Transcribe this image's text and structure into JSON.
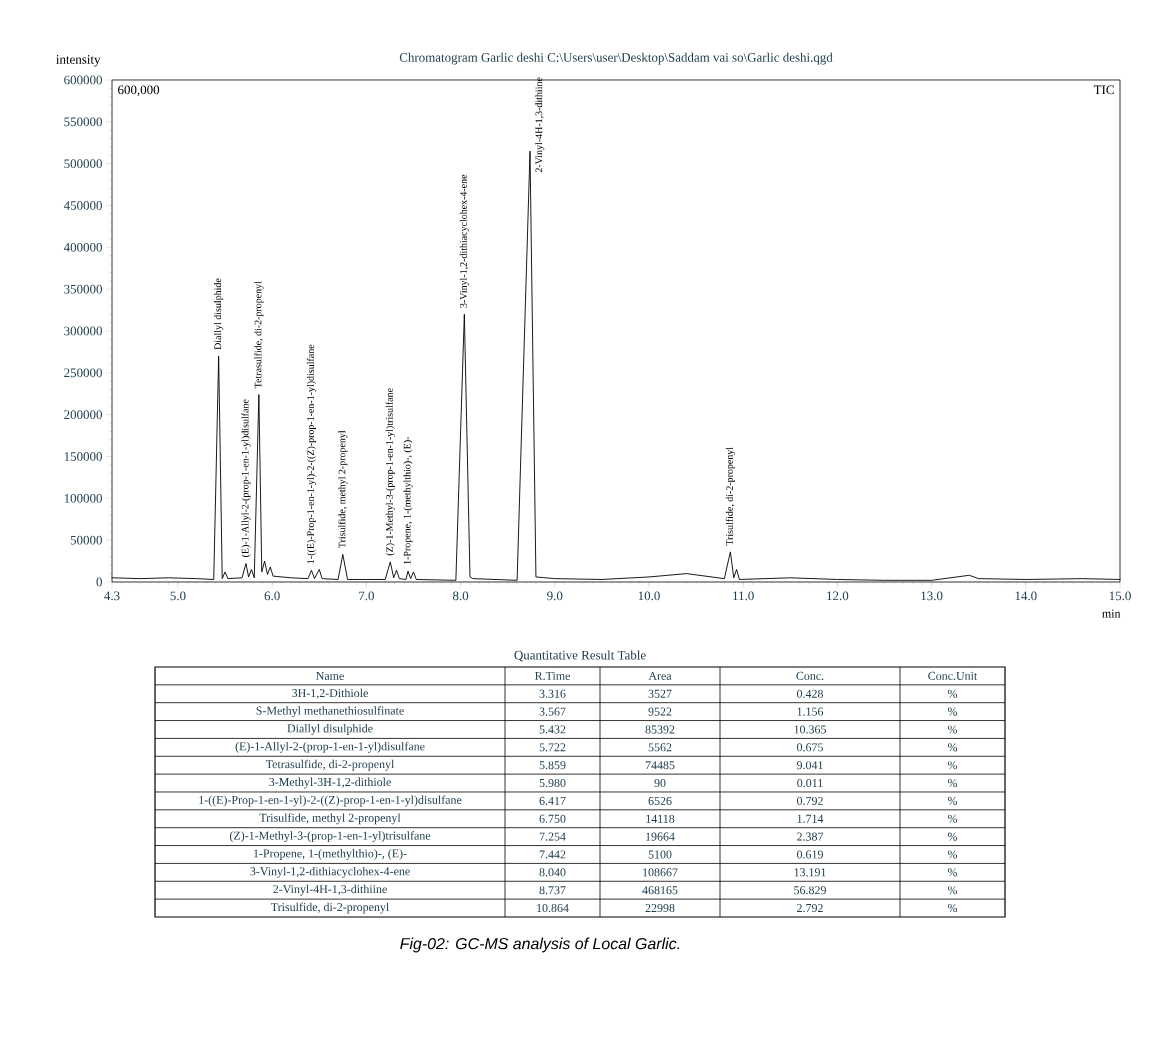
{
  "chart_data": [
    {
      "type": "line",
      "title": "Chromatogram Garlic deshi C:\\Users\\user\\Desktop\\Saddam vai so\\Garlic deshi.qgd",
      "xlabel": "min",
      "ylabel": "intensity",
      "x": [
        4.3,
        4.6,
        4.9,
        5.2,
        5.38,
        5.432,
        5.47,
        5.5,
        5.53,
        5.68,
        5.722,
        5.75,
        5.78,
        5.81,
        5.859,
        5.89,
        5.92,
        5.95,
        5.98,
        6.01,
        6.2,
        6.38,
        6.417,
        6.45,
        6.5,
        6.53,
        6.7,
        6.75,
        6.8,
        7.2,
        7.254,
        7.29,
        7.32,
        7.35,
        7.42,
        7.442,
        7.47,
        7.5,
        7.53,
        7.95,
        8.04,
        8.1,
        8.13,
        8.6,
        8.737,
        8.8,
        9.0,
        9.5,
        10.0,
        10.4,
        10.8,
        10.864,
        10.9,
        10.93,
        10.96,
        11.5,
        12.0,
        12.5,
        13.0,
        13.4,
        13.5,
        14.0,
        14.6,
        15.0
      ],
      "series": [
        {
          "color": "#000000",
          "values": [
            5000,
            4000,
            5000,
            4000,
            3000,
            270000,
            4000,
            12000,
            4000,
            5000,
            22000,
            6000,
            15000,
            5000,
            224000,
            12000,
            25000,
            9000,
            18000,
            7000,
            5000,
            4000,
            14000,
            4000,
            15000,
            4000,
            3000,
            33000,
            3000,
            3000,
            24000,
            5000,
            14000,
            4000,
            3000,
            13000,
            4000,
            12000,
            3000,
            2000,
            320000,
            6000,
            4000,
            2000,
            515000,
            6000,
            4000,
            3000,
            6000,
            10000,
            4000,
            36000,
            5000,
            15000,
            3000,
            5000,
            3000,
            2000,
            2000,
            8000,
            4000,
            3000,
            4000,
            3000
          ]
        }
      ],
      "xlim": [
        4.3,
        15.0
      ],
      "xticks": [
        4.3,
        {
          "value": 5,
          "label": "5.0"
        },
        {
          "value": 6,
          "label": "6.0"
        },
        {
          "value": 7,
          "label": "7.0"
        },
        {
          "value": 8,
          "label": "8.0"
        },
        {
          "value": 9,
          "label": "9.0"
        },
        {
          "value": 10,
          "label": "10.0"
        },
        {
          "value": 11,
          "label": "11.0"
        },
        {
          "value": 12,
          "label": "12.0"
        },
        {
          "value": 13,
          "label": "13.0"
        },
        {
          "value": 14,
          "label": "14.0"
        },
        {
          "value": 15,
          "label": "15.0"
        }
      ],
      "ylim": [
        0,
        600000
      ],
      "yticks": [
        0,
        50000,
        100000,
        150000,
        200000,
        250000,
        300000,
        350000,
        400000,
        450000,
        500000,
        550000,
        600000
      ],
      "grid": false,
      "marker": "none",
      "line_style": "solid",
      "annotations": [
        "600,000",
        "TIC",
        "*Fig-02: GC-MS analysis of Local Garlic.*",
        {
          "text": "Diallyl disulphide",
          "x": 5.432,
          "y": 270000
        },
        {
          "text": "(E)-1-Allyl-2-(prop-1-en-1-yl)disulfane",
          "x": 5.722,
          "y": 22000
        },
        {
          "text": "Tetrasulfide, di-2-propenyl",
          "x": 5.859,
          "y": 224000
        },
        {
          "text": "1-((E)-Prop-1-en-1-yl)-2-((Z)-prop-1-en-1-yl)disulfane",
          "x": 6.417,
          "y": 14000
        },
        {
          "text": "Trisulfide, methyl 2-propenyl",
          "x": 6.75,
          "y": 33000
        },
        {
          "text": "(Z)-1-Methyl-3-(prop-1-en-1-yl)trisulfane",
          "x": 7.254,
          "y": 24000
        },
        {
          "text": "1-Propene, 1-(methylthio)-, (E)-",
          "x": 7.442,
          "y": 13000
        },
        {
          "text": "3-Vinyl-1,2-dithiacyclohex-4-ene",
          "x": 8.04,
          "y": 320000
        },
        {
          "text": "2-Vinyl-4H-1,3-dithiine",
          "x": 8.737,
          "y": 515000
        },
        {
          "text": "Trisulfide, di-2-propenyl",
          "x": 10.864,
          "y": 36000
        }
      ]
    },
    {
      "type": "other",
      "title": "Quantitative Result Table",
      "categories": [
        "Name",
        "R.Time",
        "Area",
        "Conc.",
        "Conc.Unit"
      ],
      "annotations": [
        "3H-1,2-Dithiole",
        "3.316",
        "3527",
        "0.428",
        "%",
        "S-Methyl methanethiosulfinate",
        "3.567",
        "9522",
        "1.156",
        "%",
        "Diallyl disulphide",
        "5.432",
        "85392",
        "10.365",
        "%",
        "(E)-1-Allyl-2-(prop-1-en-1-yl)disulfane",
        "5.722",
        "5562",
        "0.675",
        "%",
        "Tetrasulfide, di-2-propenyl",
        "5.859",
        "74485",
        "9.041",
        "%",
        "3-Methyl-3H-1,2-dithiole",
        "5.980",
        "90",
        "0.011",
        "%",
        "1-((E)-Prop-1-en-1-yl)-2-((Z)-prop-1-en-1-yl)disulfane",
        "6.417",
        "6526",
        "0.792",
        "%",
        "Trisulfide, methyl 2-propenyl",
        "6.750",
        "14118",
        "1.714",
        "%",
        "(Z)-1-Methyl-3-(prop-1-en-1-yl)trisulfane",
        "7.254",
        "19664",
        "2.387",
        "%",
        "1-Propene, 1-(methylthio)-, (E)-",
        "7.442",
        "5100",
        "0.619",
        "%",
        "3-Vinyl-1,2-dithiacyclohex-4-ene",
        "8.040",
        "108667",
        "13.191",
        "%",
        "2-Vinyl-4H-1,3-dithiine",
        "8.737",
        "468165",
        "56.829",
        "%",
        "Trisulfide, di-2-propenyl",
        "10.864",
        "22998",
        "2.792",
        "%"
      ]
    }
  ]
}
